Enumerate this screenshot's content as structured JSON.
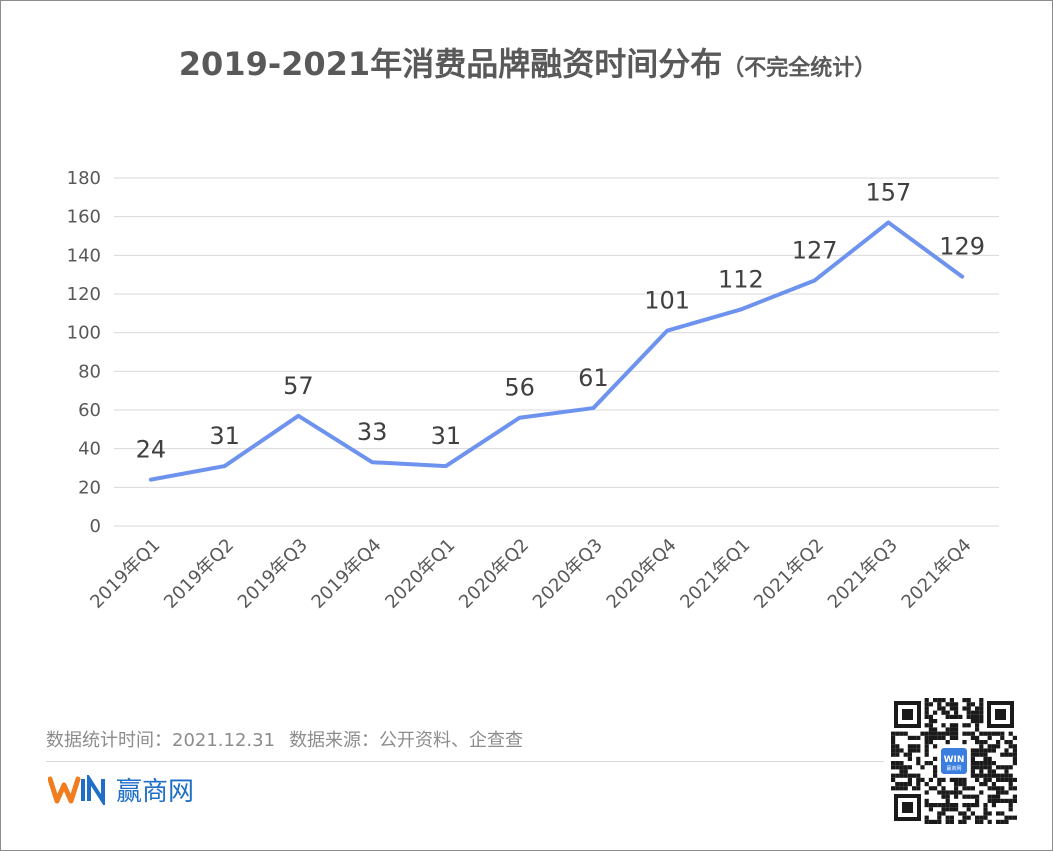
{
  "title": {
    "main": "2019-2021年消费品牌融资时间分布",
    "sub": "（不完全统计）"
  },
  "chart_data": {
    "type": "line",
    "categories": [
      "2019年Q1",
      "2019年Q2",
      "2019年Q3",
      "2019年Q4",
      "2020年Q1",
      "2020年Q2",
      "2020年Q3",
      "2020年Q4",
      "2021年Q1",
      "2021年Q2",
      "2021年Q3",
      "2021年Q4"
    ],
    "series": [
      {
        "values": [
          24,
          31,
          57,
          33,
          31,
          56,
          61,
          101,
          112,
          127,
          157,
          129
        ]
      }
    ],
    "ylim": [
      0,
      180
    ],
    "yticks": [
      "0",
      "20",
      "40",
      "60",
      "80",
      "100",
      "120",
      "140",
      "160",
      "180"
    ],
    "grid": true,
    "line_color": "#6e93ef"
  },
  "footnote": {
    "stat_time": "数据统计时间：2021.12.31",
    "source": "数据来源：公开资料、企查查"
  },
  "brand": {
    "name": "赢商网",
    "logo_text": "WIN",
    "logo_icon": "winshang-logo",
    "colors": {
      "orange": "#f07d1e",
      "blue": "#1f6ec8"
    }
  },
  "qr": {
    "icon": "qr-code-icon",
    "center_text": "WIN",
    "center_sub": "赢商网"
  }
}
